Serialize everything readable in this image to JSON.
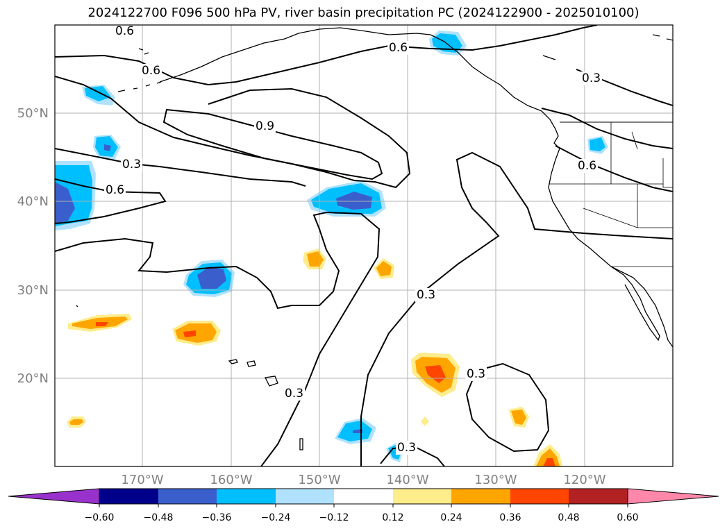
{
  "title": "2024122700 F096 500 hPa PV, river basin precipitation PC (2024122900 - 2025010100)",
  "lat_labels": [
    "50°N",
    "40°N",
    "30°N",
    "20°N"
  ],
  "lon_labels": [
    "170°W",
    "160°W",
    "150°W",
    "140°W",
    "130°W",
    "120°W"
  ],
  "contour_labels": [
    "0.6",
    "0.6",
    "0.6",
    "0.9",
    "0.3",
    "0.6",
    "0.3",
    "0.6",
    "0.3",
    "0.3",
    "0.3",
    "0.3"
  ],
  "colorbar": {
    "ticks": [
      "−0.60",
      "−0.48",
      "−0.36",
      "−0.24",
      "−0.12",
      "0.12",
      "0.24",
      "0.36",
      "0.48",
      "0.60"
    ],
    "colors": [
      "#9932cc",
      "#00008b",
      "#3a5fcd",
      "#00bfff",
      "#b0e2ff",
      "#ffffff",
      "#ffec8b",
      "#ffa500",
      "#ff4500",
      "#b22222",
      "#ff88aa"
    ]
  },
  "palette": {
    "neg_light": "#b0e2ff",
    "neg_mid": "#00bfff",
    "neg_dark": "#3a5fcd",
    "pos_light": "#ffec8b",
    "pos_mid": "#ffa500",
    "pos_dark": "#ff4500",
    "grid": "#b0b0b0",
    "contour": "#000000",
    "coast": "#000000"
  }
}
